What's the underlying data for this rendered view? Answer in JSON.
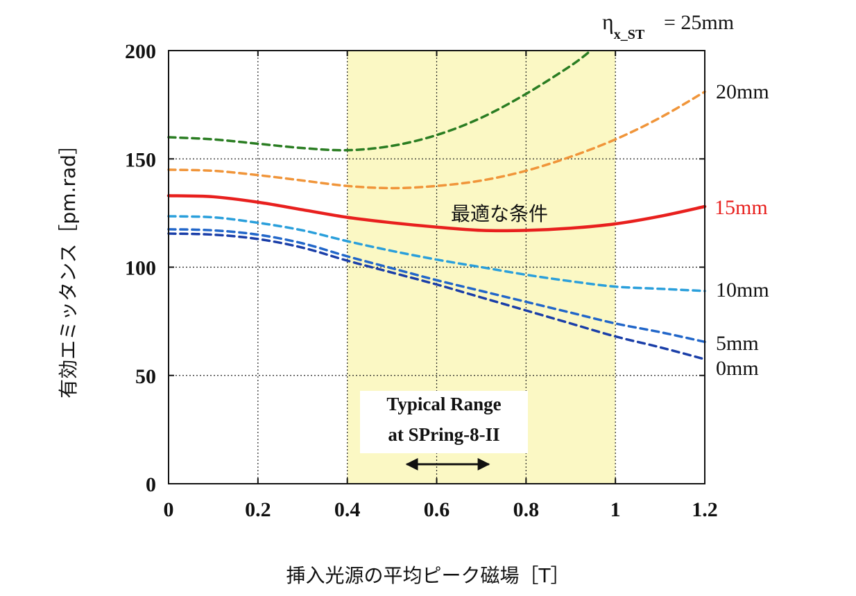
{
  "chart_data": {
    "type": "line",
    "title": "",
    "xlabel": "挿入光源の平均ピーク磁場［T］",
    "ylabel": "有効エミッタンス［pm.rad］",
    "xlim": [
      0,
      1.2
    ],
    "ylim": [
      0,
      200
    ],
    "x_ticks": [
      0,
      0.2,
      0.4,
      0.6,
      0.8,
      1.0,
      1.2
    ],
    "x_tick_labels": [
      "0",
      "0.2",
      "0.4",
      "0.6",
      "0.8",
      "1",
      "1.2"
    ],
    "y_ticks": [
      0,
      50,
      100,
      150,
      200
    ],
    "y_tick_labels": [
      "0",
      "50",
      "100",
      "150",
      "200"
    ],
    "grid": true,
    "highlight_band": {
      "x_range": [
        0.4,
        1.0
      ],
      "color": "#fbf8c4"
    },
    "legend_header": "η",
    "legend_header_subscript": "x_ST",
    "series": [
      {
        "name": "25mm",
        "label": "= 25mm",
        "color": "#2a7d22",
        "style": "dashed",
        "x": [
          0,
          0.1,
          0.2,
          0.3,
          0.4,
          0.5,
          0.6,
          0.7,
          0.8,
          0.9,
          0.945
        ],
        "y": [
          160,
          159,
          157,
          155,
          154,
          156,
          161,
          169,
          180,
          193,
          200
        ]
      },
      {
        "name": "20mm",
        "label": "20mm",
        "color": "#f0953a",
        "style": "dashed",
        "x": [
          0,
          0.1,
          0.2,
          0.3,
          0.4,
          0.5,
          0.6,
          0.7,
          0.8,
          0.9,
          1.0,
          1.1,
          1.2
        ],
        "y": [
          145,
          144.5,
          142.5,
          140,
          137.5,
          136.5,
          137.5,
          140,
          144.5,
          151,
          159,
          169,
          181
        ]
      },
      {
        "name": "15mm",
        "label": "15mm",
        "color": "#e8201e",
        "style": "solid",
        "x": [
          0,
          0.1,
          0.2,
          0.3,
          0.4,
          0.5,
          0.6,
          0.7,
          0.8,
          0.9,
          1.0,
          1.1,
          1.2
        ],
        "y": [
          133,
          132.5,
          130,
          126.5,
          123,
          120.5,
          118.5,
          117,
          117,
          118,
          120,
          123.5,
          128
        ]
      },
      {
        "name": "10mm",
        "label": "10mm",
        "color": "#2a9fdb",
        "style": "dashed",
        "x": [
          0,
          0.1,
          0.2,
          0.3,
          0.4,
          0.5,
          0.6,
          0.7,
          0.8,
          0.9,
          1.0,
          1.1,
          1.2
        ],
        "y": [
          123.5,
          123,
          120.5,
          117,
          112,
          107.5,
          103.5,
          100,
          96.5,
          93.5,
          91,
          90,
          89
        ]
      },
      {
        "name": "5mm",
        "label": "5mm",
        "color": "#2166c9",
        "style": "dashed",
        "x": [
          0,
          0.1,
          0.2,
          0.3,
          0.4,
          0.5,
          0.6,
          0.7,
          0.8,
          0.9,
          1.0,
          1.1,
          1.2
        ],
        "y": [
          117.5,
          117,
          115,
          111,
          105,
          99.5,
          94,
          89,
          84,
          79,
          74,
          70,
          65.5
        ]
      },
      {
        "name": "0mm",
        "label": "0mm",
        "color": "#1a3ea8",
        "style": "dashed",
        "x": [
          0,
          0.1,
          0.2,
          0.3,
          0.4,
          0.5,
          0.6,
          0.7,
          0.8,
          0.9,
          1.0,
          1.1,
          1.2
        ],
        "y": [
          115.5,
          115,
          113,
          109,
          103,
          97.5,
          92,
          86,
          80,
          74,
          68,
          63,
          57.5
        ]
      }
    ],
    "annotations": [
      {
        "text": "最適な条件",
        "x": 0.75,
        "y": 125,
        "color": "#111111"
      },
      {
        "text_lines": [
          "Typical Range",
          "at SPring-8-II"
        ],
        "arrow_x_range": [
          0.53,
          0.72
        ],
        "arrow_y": 9
      }
    ]
  }
}
